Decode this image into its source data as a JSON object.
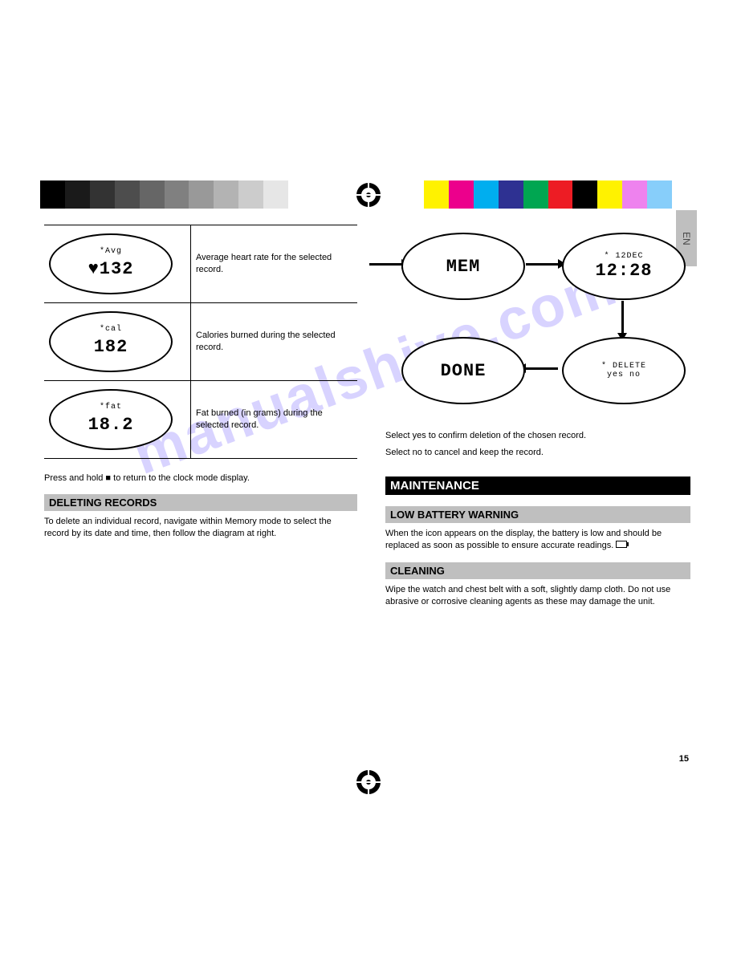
{
  "palette": {
    "left": [
      "#000000",
      "#1a1a1a",
      "#333333",
      "#4d4d4d",
      "#666666",
      "#808080",
      "#999999",
      "#b3b3b3",
      "#cccccc",
      "#e6e6e6",
      "#ffffff"
    ],
    "right": [
      "#fff200",
      "#ec008c",
      "#00aeef",
      "#2e3192",
      "#00a651",
      "#ed1c24",
      "#000000",
      "#fff200",
      "#ee82ee",
      "#87cefa",
      "#ffffff"
    ]
  },
  "lang_tab": "EN",
  "watermark": "manualshive.com",
  "table": {
    "rows": [
      {
        "lcd_top": "*Avg",
        "lcd_mid": "♥132",
        "desc": "Average heart rate for the selected record."
      },
      {
        "lcd_top": "*cal",
        "lcd_mid": "182",
        "desc": "Calories burned during the selected record."
      },
      {
        "lcd_top": "*fat",
        "lcd_mid": "18.2",
        "desc": "Fat burned (in grams) during the selected record."
      }
    ]
  },
  "note_after_table": "Press and hold ■ to return to the clock mode display.",
  "subhead_delete": "DELETING RECORDS",
  "delete_para": "To delete an individual record, navigate within Memory mode to select the record by its date and time, then follow the diagram at right.",
  "flow": {
    "n1": {
      "top": "",
      "mid": "MEM"
    },
    "n2": {
      "top": "* 12DEC",
      "mid": "12:28"
    },
    "n3": {
      "top": "* DELETE",
      "mid": "yes   no"
    },
    "n4": {
      "top": "",
      "mid": "DONE"
    }
  },
  "rightcol": {
    "delete_note1": "Select yes to confirm deletion of the chosen record.",
    "delete_note2": "Select no to cancel and keep the record.",
    "bighead": "MAINTENANCE",
    "sub_battery": "LOW BATTERY WARNING",
    "battery_text": "When the      icon appears on the display, the battery is low and should be replaced as soon as possible to ensure accurate readings.",
    "sub_clean": "CLEANING",
    "clean_text": "Wipe the watch and chest belt with a soft, slightly damp cloth. Do not use abrasive or corrosive cleaning agents as these may damage the unit."
  },
  "page_number": "15"
}
